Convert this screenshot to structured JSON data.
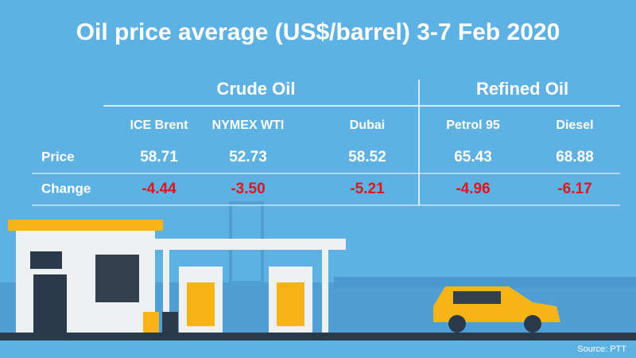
{
  "title": "Oil price average (US$/barrel) 3-7 Feb 2020",
  "table": {
    "groups": [
      "Crude Oil",
      "Refined Oil"
    ],
    "columns": [
      "ICE Brent",
      "NYMEX WTI",
      "Dubai",
      "Petrol 95",
      "Diesel"
    ],
    "rows": [
      {
        "label": "Price",
        "values": [
          "58.71",
          "52.73",
          "58.52",
          "65.43",
          "68.88"
        ]
      },
      {
        "label": "Change",
        "values": [
          "-4.44",
          "-3.50",
          "-5.21",
          "-4.96",
          "-6.17"
        ]
      }
    ]
  },
  "source": "Source: PTT"
}
